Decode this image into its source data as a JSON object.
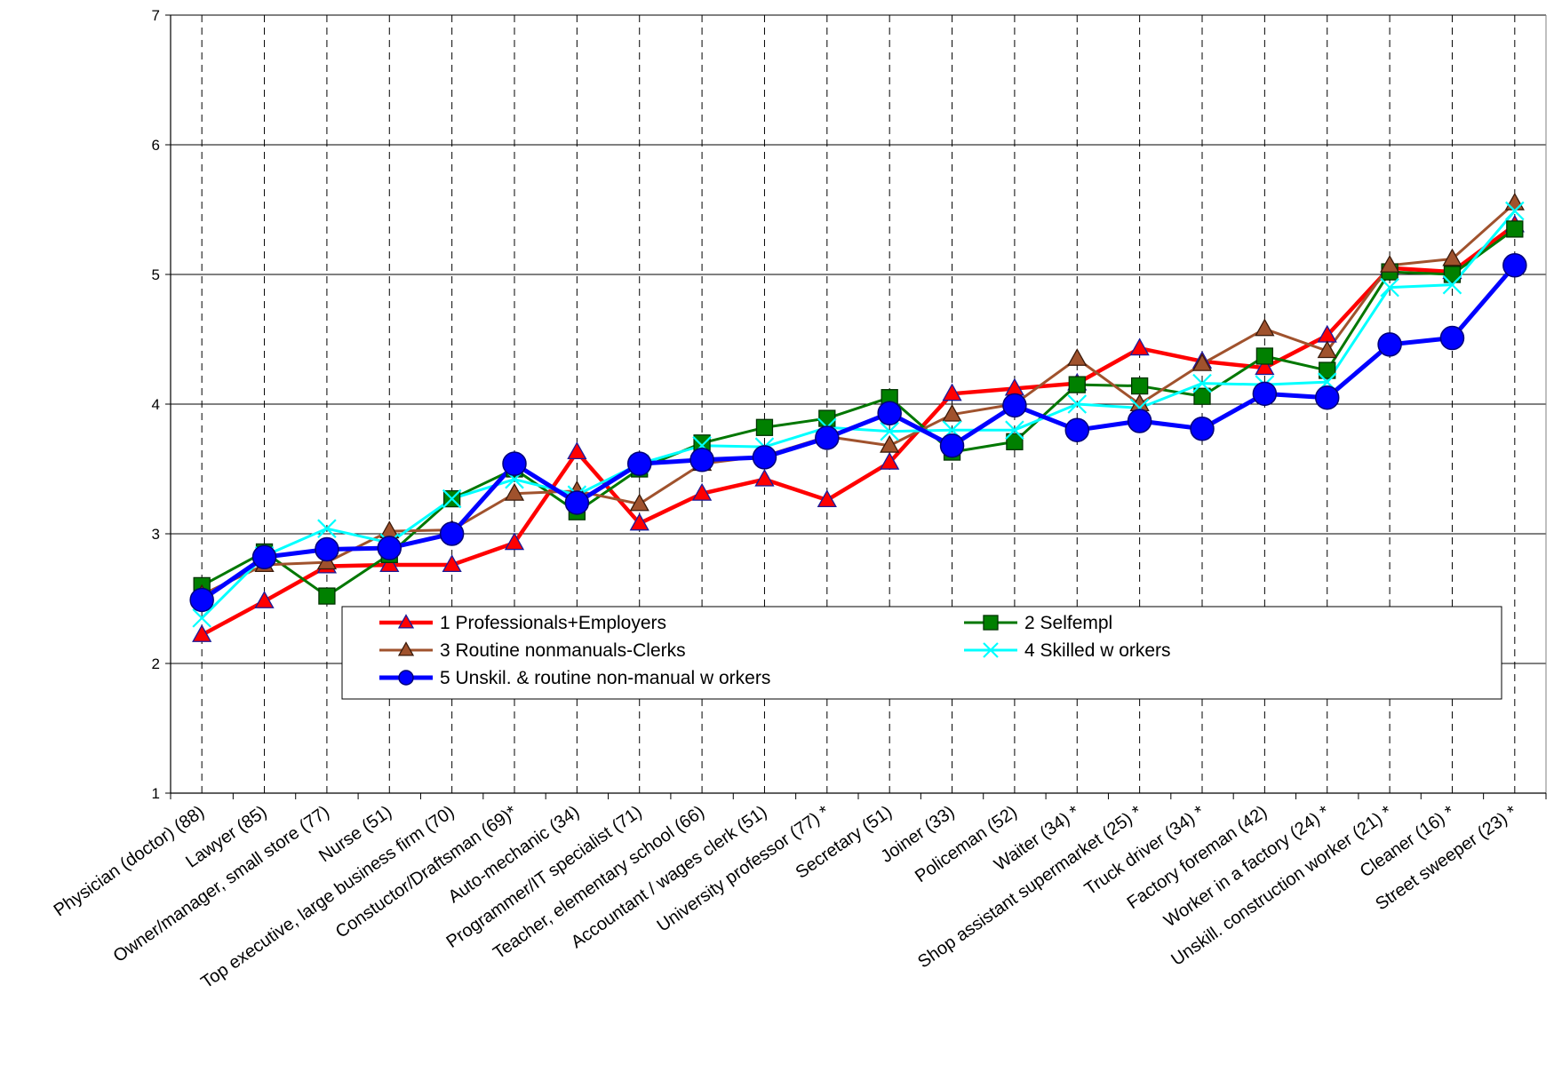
{
  "chart_data": {
    "type": "line",
    "title": "",
    "xlabel": "",
    "ylabel": "",
    "ylim": [
      1,
      7
    ],
    "yticks": [
      "1",
      "2",
      "3",
      "4",
      "5",
      "6",
      "7"
    ],
    "grid": {
      "horizontal": true,
      "vertical": "dashed"
    },
    "legend_placement": "center-left",
    "categories": [
      "Physician (doctor) (88)",
      "Lawyer (85)",
      "Owner/manager, small store (77)",
      "Nurse (51)",
      "Top executive, large business firm (70)",
      "Constuctor/Draftsman (69)*",
      "Auto-mechanic (34)",
      "Programmer/IT specialist (71)",
      "Teacher, elementary school (66)",
      "Accountant / wages clerk (51)",
      "University professor (77) *",
      "Secretary (51)",
      "Joiner (33)",
      "Policeman (52)",
      "Waiter (34) *",
      "Shop assistant supermarket (25) *",
      "Truck driver (34) *",
      "Factory foreman (42)",
      "Worker in a factory (24) *",
      "Unskill. construction worker (21) *",
      "Cleaner (16) *",
      "Street sweeper (23) *"
    ],
    "series": [
      {
        "name": "1  Professionals+Employers",
        "color": "#ff0000",
        "marker": "triangle",
        "marker_fill": "#ff0000",
        "marker_stroke": "#1a1a99",
        "values": [
          2.22,
          2.48,
          2.75,
          2.76,
          2.76,
          2.93,
          3.63,
          3.08,
          3.31,
          3.42,
          3.26,
          3.55,
          4.08,
          4.12,
          4.16,
          4.43,
          4.33,
          4.28,
          4.53,
          5.05,
          5.02,
          5.38
        ]
      },
      {
        "name": "2  Selfempl",
        "color": "#007700",
        "marker": "square",
        "marker_fill": "#008000",
        "marker_stroke": "#003300",
        "values": [
          2.6,
          2.86,
          2.52,
          2.84,
          3.27,
          3.5,
          3.17,
          3.5,
          3.7,
          3.82,
          3.89,
          4.05,
          3.63,
          3.71,
          4.15,
          4.14,
          4.06,
          4.37,
          4.26,
          5.02,
          5.0,
          5.35
        ]
      },
      {
        "name": "3  Routine nonmanuals-Clerks",
        "color": "#a0522d",
        "marker": "triangle",
        "marker_fill": "#a0522d",
        "marker_stroke": "#3a1a0a",
        "values": [
          2.53,
          2.76,
          2.78,
          3.02,
          3.03,
          3.31,
          3.33,
          3.23,
          3.54,
          3.6,
          3.75,
          3.68,
          3.92,
          4.0,
          4.35,
          4.0,
          4.31,
          4.58,
          4.41,
          5.07,
          5.12,
          5.55
        ]
      },
      {
        "name": "4  Skilled w orkers",
        "color": "#00ffff",
        "marker": "x",
        "marker_fill": "#00ffff",
        "marker_stroke": "#00e5e5",
        "values": [
          2.35,
          2.83,
          3.04,
          2.93,
          3.27,
          3.42,
          3.3,
          3.54,
          3.68,
          3.67,
          3.82,
          3.79,
          3.8,
          3.8,
          4.0,
          3.97,
          4.16,
          4.15,
          4.17,
          4.9,
          4.92,
          5.49
        ]
      },
      {
        "name": "5  Unskil. & routine non-manual w orkers",
        "color": "#0000ff",
        "marker": "circle",
        "marker_fill": "#0000ff",
        "marker_stroke": "#00007a",
        "values": [
          2.49,
          2.82,
          2.88,
          2.89,
          3.0,
          3.54,
          3.24,
          3.54,
          3.57,
          3.59,
          3.74,
          3.93,
          3.68,
          3.99,
          3.8,
          3.87,
          3.81,
          4.08,
          4.05,
          4.46,
          4.51,
          5.07
        ]
      }
    ]
  }
}
